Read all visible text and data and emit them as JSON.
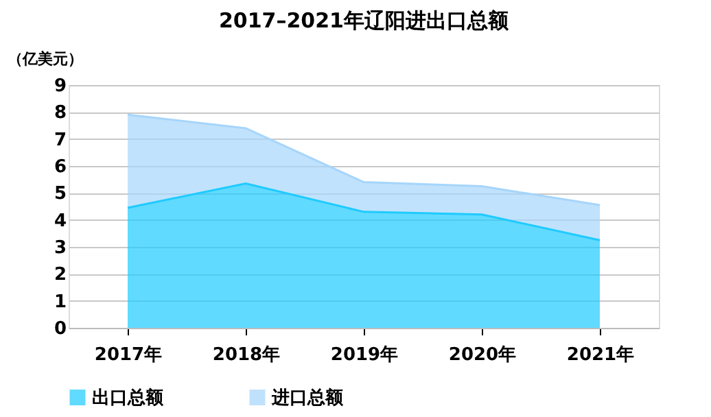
{
  "chart_data": {
    "type": "area",
    "title": "2017–2021年辽阳进出口总额",
    "ylabel": "（亿美元）",
    "categories": [
      "2017年",
      "2018年",
      "2019年",
      "2020年",
      "2021年"
    ],
    "series": [
      {
        "name": "出口总额",
        "color": "#1ecbff",
        "values": [
          4.45,
          5.35,
          4.3,
          4.2,
          3.25
        ]
      },
      {
        "name": "进口总额",
        "color": "#a6d5fb",
        "values": [
          3.45,
          2.05,
          1.1,
          1.05,
          1.3
        ]
      }
    ],
    "stacked": true,
    "ylim": [
      0,
      9
    ],
    "yticks": [
      0,
      1,
      2,
      3,
      4,
      5,
      6,
      7,
      8,
      9
    ],
    "grid": "y",
    "legend": "bottom"
  }
}
